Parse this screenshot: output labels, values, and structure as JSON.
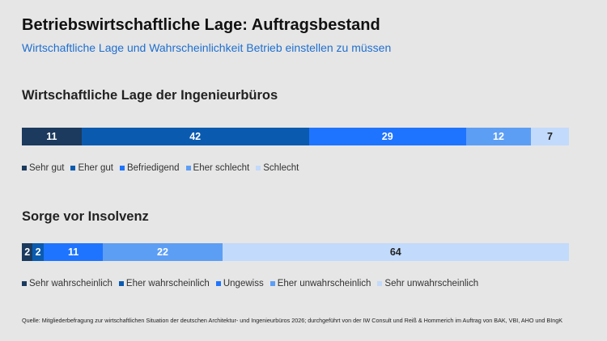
{
  "header": {
    "title": "Betriebswirtschaftliche Lage: Auftragsbestand",
    "subtitle": "Wirtschaftliche Lage und Wahrscheinlichkeit Betrieb einstellen zu müssen"
  },
  "chart_data": [
    {
      "type": "bar",
      "orientation": "horizontal-stacked",
      "title": "Wirtschaftliche Lage der Ingenieurbüros",
      "series": [
        {
          "name": "Sehr gut",
          "value": 11,
          "color": "#1b3a5e",
          "label_color": "#ffffff"
        },
        {
          "name": "Eher gut",
          "value": 42,
          "color": "#0a5bb0",
          "label_color": "#ffffff"
        },
        {
          "name": "Befriedigend",
          "value": 29,
          "color": "#1f74ff",
          "label_color": "#ffffff"
        },
        {
          "name": "Eher schlecht",
          "value": 12,
          "color": "#5d9ef5",
          "label_color": "#ffffff"
        },
        {
          "name": "Schlecht",
          "value": 7,
          "color": "#c2dafb",
          "label_color": "#222222"
        }
      ],
      "legend_position": "bottom-left"
    },
    {
      "type": "bar",
      "orientation": "horizontal-stacked",
      "title": "Sorge vor Insolvenz",
      "series": [
        {
          "name": "Sehr wahrscheinlich",
          "value": 2,
          "color": "#1b3a5e",
          "label_color": "#ffffff"
        },
        {
          "name": "Eher wahrscheinlich",
          "value": 2,
          "color": "#0a5bb0",
          "label_color": "#ffffff"
        },
        {
          "name": "Ungewiss",
          "value": 11,
          "color": "#1f74ff",
          "label_color": "#ffffff"
        },
        {
          "name": "Eher unwahrscheinlich",
          "value": 22,
          "color": "#5d9ef5",
          "label_color": "#ffffff"
        },
        {
          "name": "Sehr unwahrscheinlich",
          "value": 64,
          "color": "#c2dafb",
          "label_color": "#222222"
        }
      ],
      "legend_position": "bottom-left"
    }
  ],
  "footer": {
    "source": "Quelle: Mitgliederbefragung zur wirtschaftlichen Situation der deutschen Architektur- und Ingenieurbüros 2026; durchgeführt von der IW Consult und Reiß & Hommerich im Auftrag von BAK, VBI, AHO und BIngK"
  }
}
